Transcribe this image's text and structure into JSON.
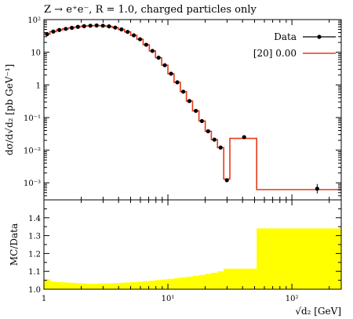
{
  "chart_data": [
    {
      "type": "line",
      "panel": "main",
      "title": "Z → e⁺e⁻, R = 1.0, charged particles only",
      "xlabel": "√d₂ [GeV]",
      "ylabel": "dσ/d√d₂ [pb GeV⁻¹]",
      "xscale": "log",
      "yscale": "log",
      "xlim": [
        1,
        250
      ],
      "ylim": [
        0.0003,
        100
      ],
      "grid": false,
      "legend_position": "top-right",
      "x_ticks": [
        {
          "label": "1",
          "value": 1
        },
        {
          "label": "10¹",
          "value": 10
        },
        {
          "label": "10²",
          "value": 100
        }
      ],
      "y_ticks": [
        {
          "label": "10²",
          "value": 100
        },
        {
          "label": "10",
          "value": 10
        },
        {
          "label": "1",
          "value": 1
        },
        {
          "label": "10⁻¹",
          "value": 0.1
        },
        {
          "label": "10⁻²",
          "value": 0.01
        },
        {
          "label": "10⁻³",
          "value": 0.001
        }
      ],
      "legend": [
        {
          "label": "Data",
          "color": "#000000"
        },
        {
          "label": "[20] 0.00",
          "color": "#e8391a"
        }
      ],
      "data": {
        "x": [
          1.06,
          1.19,
          1.33,
          1.5,
          1.68,
          1.88,
          2.11,
          2.37,
          2.66,
          2.99,
          3.35,
          3.76,
          4.22,
          4.73,
          5.31,
          5.96,
          6.68,
          7.5,
          8.41,
          9.44,
          10.6,
          11.9,
          13.3,
          14.9,
          16.8,
          18.8,
          21.1,
          23.7,
          26.6,
          29.9,
          41.2,
          160
        ],
        "y": [
          36,
          43,
          48,
          52,
          56,
          60,
          63,
          65,
          66,
          65,
          62,
          57,
          50,
          42,
          33,
          25,
          17,
          11,
          6.8,
          4.0,
          2.2,
          1.2,
          0.62,
          0.32,
          0.16,
          0.078,
          0.038,
          0.021,
          0.012,
          0.0012,
          0.025,
          0.00066
        ]
      },
      "mc_bins": {
        "edges": [
          1.0,
          1.12,
          1.26,
          1.41,
          1.58,
          1.78,
          2.0,
          2.24,
          2.51,
          2.82,
          3.16,
          3.55,
          3.98,
          4.47,
          5.01,
          5.62,
          6.31,
          7.08,
          7.94,
          8.91,
          10.0,
          11.2,
          12.6,
          14.1,
          15.8,
          17.8,
          20.0,
          22.4,
          25.1,
          28.2,
          31.6,
          52,
          250
        ],
        "values": [
          36,
          43,
          48,
          52,
          56,
          60,
          63,
          65,
          66,
          65,
          62,
          57,
          50,
          42,
          33,
          25,
          17,
          11,
          6.8,
          4.0,
          2.2,
          1.2,
          0.62,
          0.32,
          0.16,
          0.078,
          0.038,
          0.021,
          0.012,
          0.0013,
          0.023,
          0.00062
        ]
      }
    },
    {
      "type": "area",
      "panel": "ratio",
      "xlabel": "√d₂ [GeV]",
      "ylabel": "MC/Data",
      "xscale": "log",
      "xlim": [
        1,
        250
      ],
      "ylim": [
        1.0,
        1.5
      ],
      "grid": false,
      "y_ticks": [
        {
          "label": "1.0",
          "value": 1.0
        },
        {
          "label": "1.1",
          "value": 1.1
        },
        {
          "label": "1.2",
          "value": 1.2
        },
        {
          "label": "1.3",
          "value": 1.3
        },
        {
          "label": "1.4",
          "value": 1.4
        }
      ],
      "band_color": "#ffff00",
      "band_bins": {
        "edges": [
          1.0,
          1.12,
          1.26,
          1.41,
          1.58,
          1.78,
          2.0,
          2.24,
          2.51,
          2.82,
          3.16,
          3.55,
          3.98,
          4.47,
          5.01,
          5.62,
          6.31,
          7.08,
          7.94,
          8.91,
          10.0,
          11.2,
          12.6,
          14.1,
          15.8,
          17.8,
          20.0,
          22.4,
          25.1,
          28.2,
          31.6,
          52,
          250
        ],
        "upper": [
          1.055,
          1.042,
          1.04,
          1.038,
          1.036,
          1.034,
          1.032,
          1.03,
          1.031,
          1.032,
          1.033,
          1.034,
          1.036,
          1.038,
          1.04,
          1.042,
          1.045,
          1.048,
          1.052,
          1.055,
          1.058,
          1.062,
          1.066,
          1.07,
          1.075,
          1.08,
          1.086,
          1.092,
          1.1,
          1.115,
          1.115,
          1.34
        ]
      }
    }
  ]
}
